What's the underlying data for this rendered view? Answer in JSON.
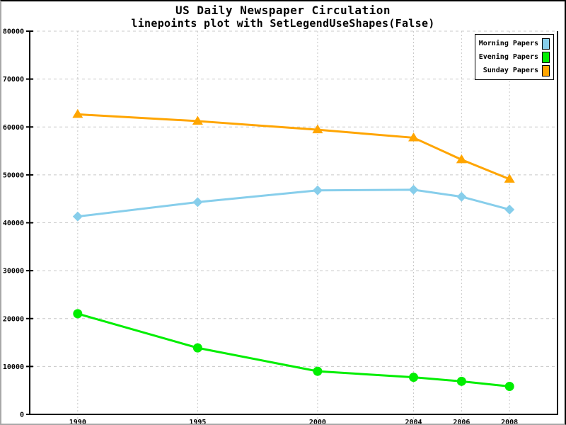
{
  "chart_data": {
    "type": "line",
    "title": "US Daily Newspaper Circulation",
    "subtitle": "linepoints plot with SetLegendUseShapes(False)",
    "x": [
      1990,
      1995,
      2000,
      2004,
      2006,
      2008
    ],
    "xtick_labels": [
      "1990",
      "1995",
      "2000",
      "2004",
      "2006",
      "2008"
    ],
    "yticks": [
      0,
      10000,
      20000,
      30000,
      40000,
      50000,
      60000,
      70000,
      80000
    ],
    "xlim": [
      1988,
      2010
    ],
    "ylim": [
      0,
      80000
    ],
    "grid": true,
    "legend_position": "top-right",
    "series": [
      {
        "name": "Morning Papers",
        "marker": "diamond",
        "color": "#87CEEB",
        "values": [
          41311,
          44310,
          46772,
          46887,
          45441,
          42757
        ]
      },
      {
        "name": "Evening Papers",
        "marker": "circle",
        "color": "#00EE00",
        "values": [
          21017,
          13883,
          9000,
          7738,
          6900,
          5840
        ]
      },
      {
        "name": "Sunday Papers",
        "marker": "triangle",
        "color": "#FFA500",
        "values": [
          62635,
          61229,
          59421,
          57754,
          53179,
          49115
        ]
      }
    ]
  },
  "colors": {
    "background": "#ffffff",
    "axis": "#000000",
    "grid": "#c8c8c8",
    "text": "#000000"
  }
}
